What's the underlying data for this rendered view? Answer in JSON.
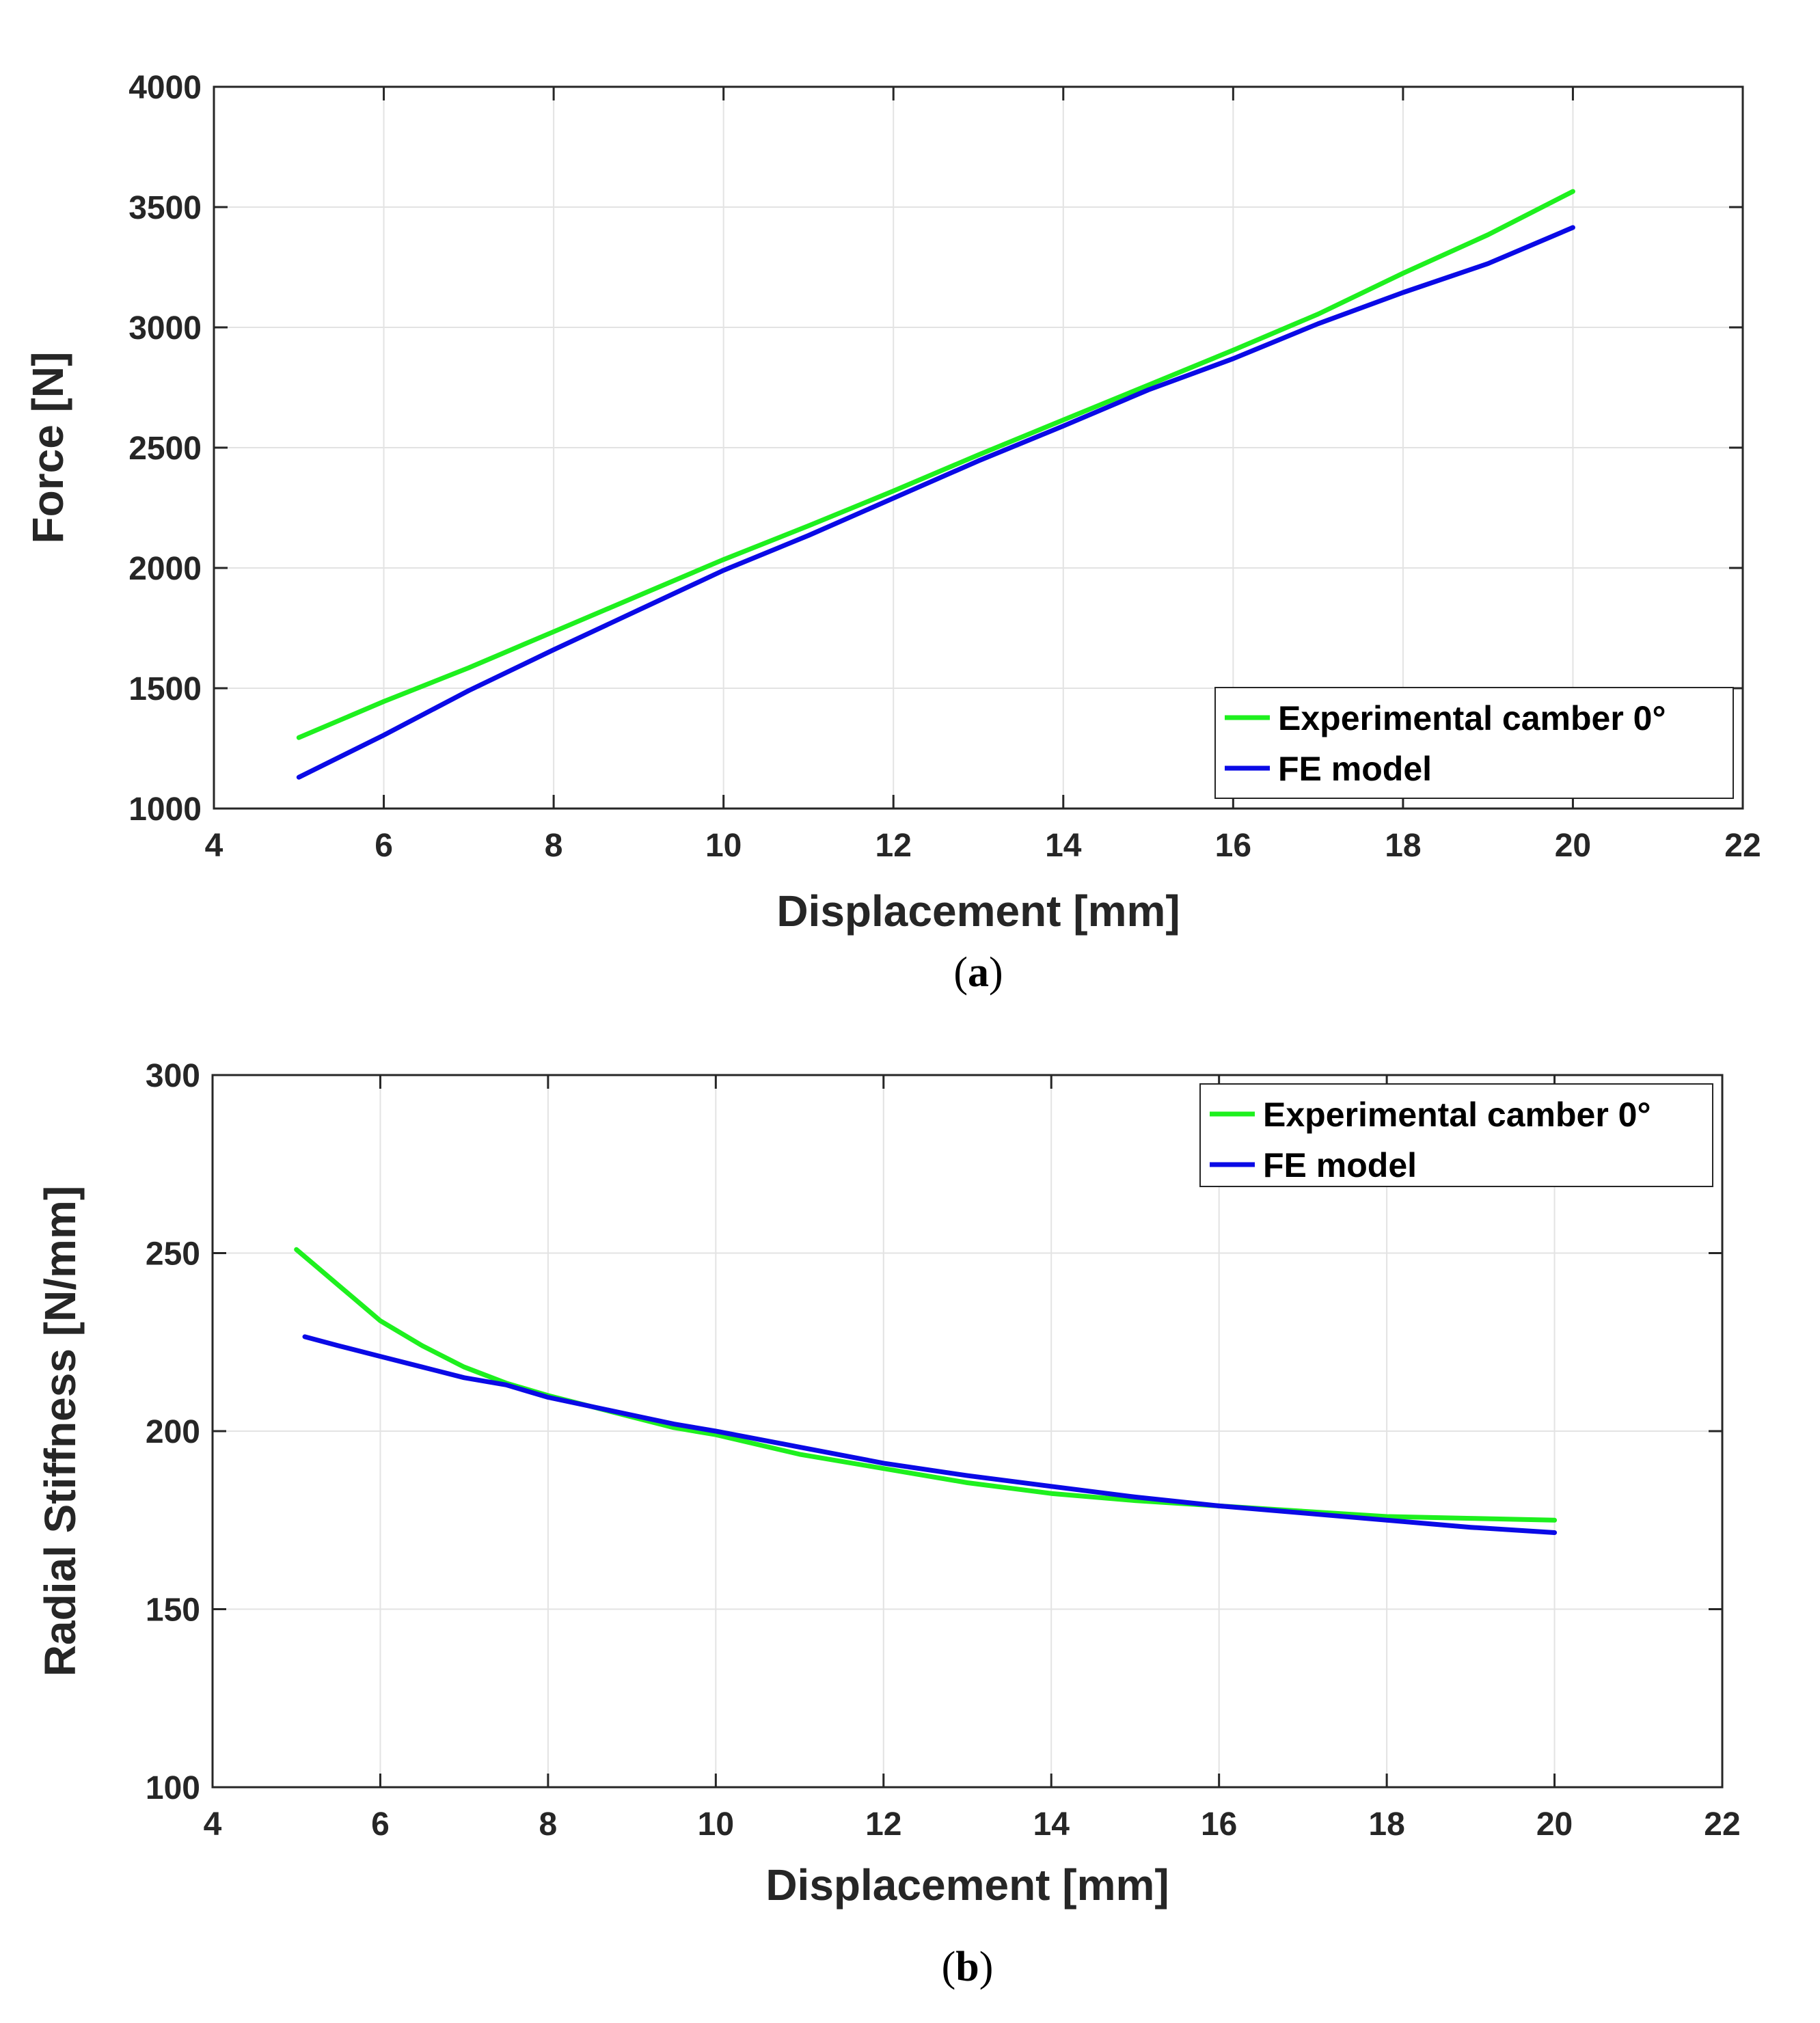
{
  "chart_data": [
    {
      "type": "line",
      "panel": "a",
      "caption_letter": "a",
      "caption_open": "(",
      "caption_close": ")",
      "xlabel": "Displacement [mm]",
      "ylabel": "Force [N]",
      "xlim": [
        4,
        22
      ],
      "ylim": [
        1000,
        4000
      ],
      "xticks": [
        4,
        6,
        8,
        10,
        12,
        14,
        16,
        18,
        20,
        22
      ],
      "yticks": [
        1000,
        1500,
        2000,
        2500,
        3000,
        3500,
        4000
      ],
      "grid": true,
      "legend_position": "bottom-right",
      "series": [
        {
          "name": "Experimental camber 0°",
          "color": "#1EF01E",
          "x": [
            5,
            6,
            7,
            8,
            9,
            10,
            11,
            12,
            13,
            14,
            15,
            16,
            17,
            18,
            19,
            20
          ],
          "y": [
            1295,
            1445,
            1585,
            1735,
            1885,
            2035,
            2175,
            2320,
            2470,
            2615,
            2760,
            2905,
            3055,
            3225,
            3385,
            3565
          ]
        },
        {
          "name": "FE model",
          "color": "#0A0AE6",
          "x": [
            5,
            6,
            7,
            8,
            9,
            10,
            11,
            12,
            13,
            14,
            15,
            16,
            17,
            18,
            19,
            20
          ],
          "y": [
            1130,
            1305,
            1490,
            1660,
            1825,
            1990,
            2135,
            2290,
            2445,
            2590,
            2740,
            2870,
            3015,
            3145,
            3265,
            3415
          ]
        }
      ]
    },
    {
      "type": "line",
      "panel": "b",
      "caption_letter": "b",
      "caption_open": "(",
      "caption_close": ")",
      "xlabel": "Displacement [mm]",
      "ylabel": "Radial Stiffness [N/mm]",
      "xlim": [
        4,
        22
      ],
      "ylim": [
        100,
        300
      ],
      "xticks": [
        4,
        6,
        8,
        10,
        12,
        14,
        16,
        18,
        20,
        22
      ],
      "yticks": [
        100,
        150,
        200,
        250,
        300
      ],
      "grid": true,
      "legend_position": "top-right",
      "series": [
        {
          "name": "Experimental camber 0°",
          "color": "#1EF01E",
          "x": [
            5,
            5.25,
            5.5,
            5.75,
            6,
            6.5,
            7,
            7.5,
            8,
            8.5,
            9,
            9.5,
            10,
            11,
            12,
            13,
            14,
            15,
            16,
            17,
            18,
            19,
            20
          ],
          "y": [
            251,
            246,
            241,
            236,
            231,
            224,
            218,
            213.5,
            210,
            207,
            204,
            201,
            199,
            193.5,
            189.5,
            185.5,
            182.5,
            180.5,
            179,
            177.5,
            176,
            175.5,
            175
          ]
        },
        {
          "name": "FE model",
          "color": "#0A0AE6",
          "x": [
            5.1,
            5.5,
            6,
            6.5,
            7,
            7.5,
            8,
            8.5,
            9,
            9.5,
            10,
            11,
            12,
            13,
            14,
            15,
            16,
            17,
            18,
            19,
            20
          ],
          "y": [
            226.5,
            224,
            221,
            218,
            215,
            213,
            209.5,
            207,
            204.5,
            202,
            200,
            195.5,
            191,
            187.5,
            184.5,
            181.5,
            179,
            177,
            175,
            173,
            171.5
          ]
        }
      ]
    }
  ]
}
